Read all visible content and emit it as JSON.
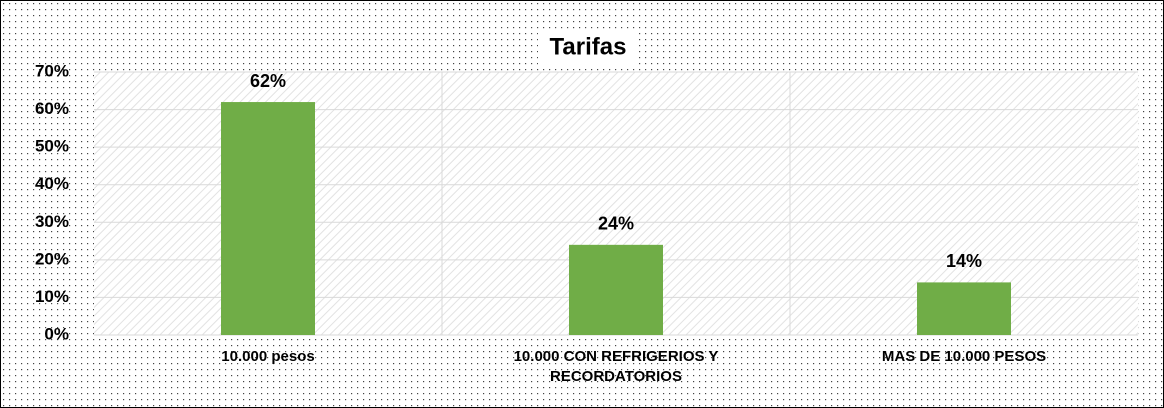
{
  "chart_data": {
    "type": "bar",
    "title": "Tarifas",
    "categories": [
      "10.000 pesos",
      "10.000 CON REFRIGERIOS Y RECORDATORIOS",
      "MAS DE 10.000 PESOS"
    ],
    "values": [
      62,
      24,
      14
    ],
    "value_labels": [
      "62%",
      "24%",
      "14%"
    ],
    "color": "#70ad47",
    "ylim": [
      0,
      70
    ],
    "yticks": [
      {
        "value": 0,
        "label": "0%"
      },
      {
        "value": 10,
        "label": "10%"
      },
      {
        "value": 20,
        "label": "20%"
      },
      {
        "value": 30,
        "label": "30%"
      },
      {
        "value": 40,
        "label": "40%"
      },
      {
        "value": 50,
        "label": "50%"
      },
      {
        "value": 60,
        "label": "60%"
      },
      {
        "value": 70,
        "label": "70%"
      }
    ],
    "grid": true
  }
}
